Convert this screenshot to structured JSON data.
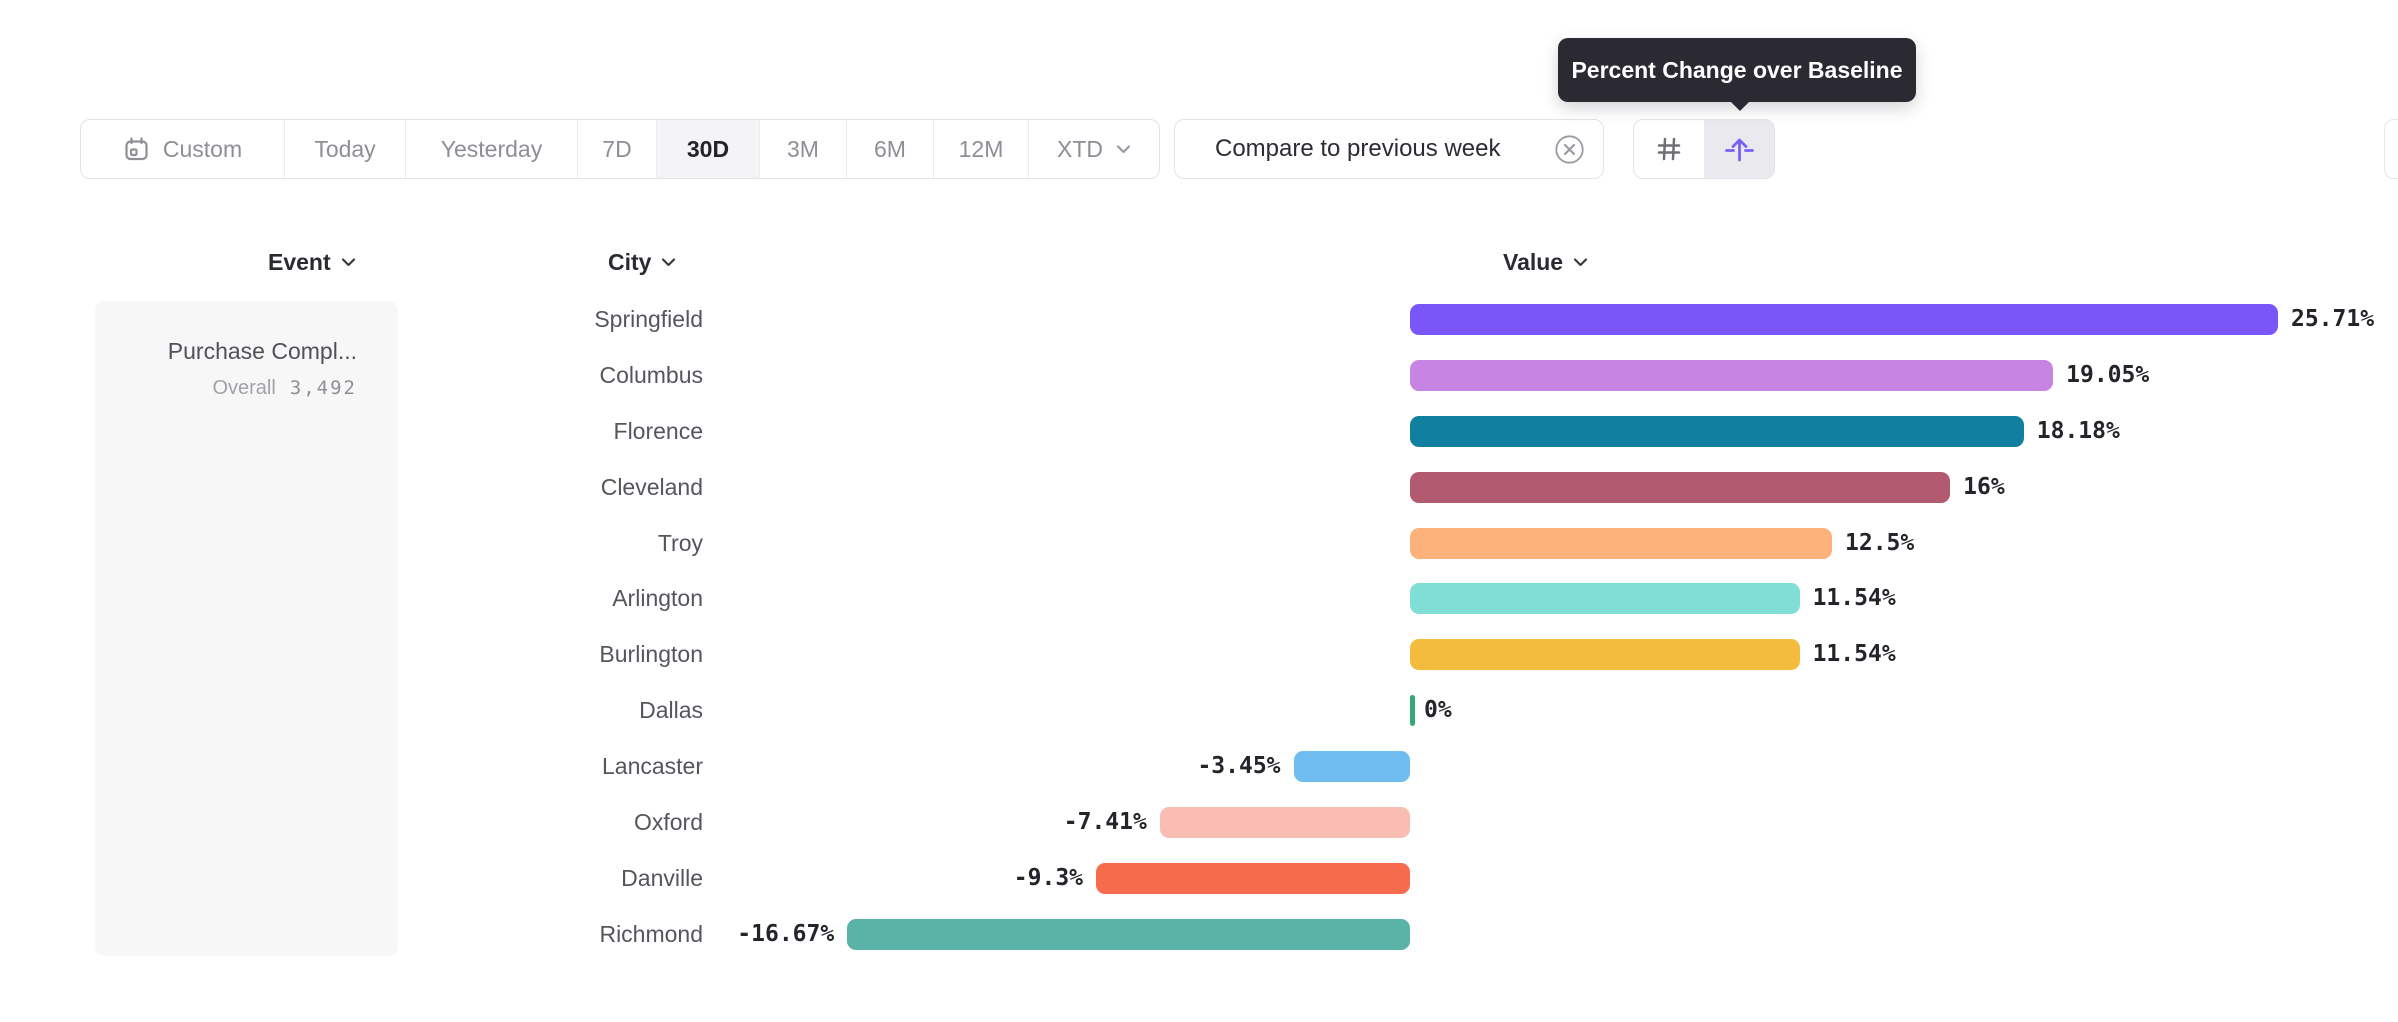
{
  "tooltip": {
    "text": "Percent Change over Baseline"
  },
  "toolbar": {
    "date_ranges": [
      {
        "label": "Custom",
        "icon": "calendar",
        "selected": false
      },
      {
        "label": "Today",
        "selected": false
      },
      {
        "label": "Yesterday",
        "selected": false
      },
      {
        "label": "7D",
        "selected": false
      },
      {
        "label": "30D",
        "selected": true
      },
      {
        "label": "3M",
        "selected": false
      },
      {
        "label": "6M",
        "selected": false
      },
      {
        "label": "12M",
        "selected": false
      },
      {
        "label": "XTD",
        "chevron": true,
        "selected": false
      }
    ],
    "compare": {
      "label": "Compare to previous week",
      "remove_icon": "circle-x"
    },
    "view_toggle": [
      {
        "icon": "hash",
        "selected": false
      },
      {
        "icon": "baseline-arrow",
        "selected": true,
        "tooltip": "Percent Change over Baseline"
      }
    ]
  },
  "table": {
    "columns": [
      {
        "label": "Event"
      },
      {
        "label": "City"
      },
      {
        "label": "Value"
      }
    ],
    "event": {
      "name": "Purchase Compl...",
      "overall_label": "Overall",
      "overall_value": "3,492"
    }
  },
  "chart_data": {
    "type": "bar",
    "orientation": "horizontal",
    "value_unit": "%",
    "categories": [
      "Springfield",
      "Columbus",
      "Florence",
      "Cleveland",
      "Troy",
      "Arlington",
      "Burlington",
      "Dallas",
      "Lancaster",
      "Oxford",
      "Danville",
      "Richmond"
    ],
    "values": [
      25.71,
      19.05,
      18.18,
      16,
      12.5,
      11.54,
      11.54,
      0,
      -3.45,
      -7.41,
      -9.3,
      -16.67
    ],
    "labels": [
      "25.71%",
      "19.05%",
      "18.18%",
      "16%",
      "12.5%",
      "11.54%",
      "11.54%",
      "0%",
      "-3.45%",
      "-7.41%",
      "-9.3%",
      "-16.67%"
    ],
    "colors": [
      "#7a55f7",
      "#c884e2",
      "#117f9f",
      "#b15a70",
      "#fdb17b",
      "#81ded6",
      "#f4bc3e",
      "#35a877",
      "#6fbcf1",
      "#fabdb4",
      "#f66b4b",
      "#59b3a6"
    ]
  },
  "colors": {
    "accent_purple": "#7b60f2",
    "tooltip_bg": "#2b2a33",
    "zero_tick_green": "#35a877",
    "muted_text": "#8e8e96",
    "dark_text": "#24242a"
  }
}
